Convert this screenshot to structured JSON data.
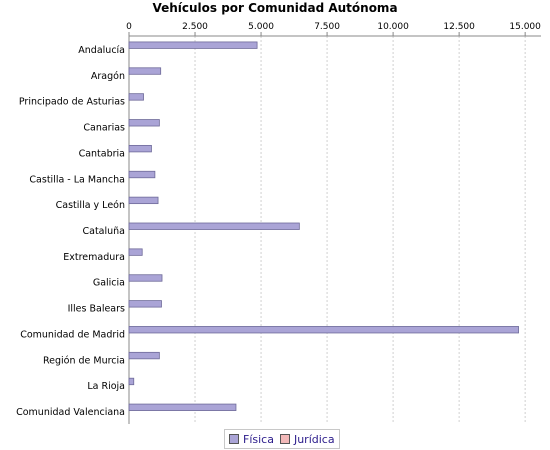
{
  "chart_data": {
    "type": "bar",
    "orientation": "horizontal",
    "title": "Vehículos por Comunidad Autónoma",
    "xlabel": "",
    "ylabel": "",
    "xlim": [
      0,
      15600
    ],
    "x_ticks": [
      0,
      2500,
      5000,
      7500,
      10000,
      12500,
      15000
    ],
    "x_tick_labels": [
      "0",
      "2.500",
      "5.000",
      "7.500",
      "10.000",
      "12.500",
      "15.000"
    ],
    "x_axis_position": "top",
    "grid": true,
    "legend_position": "bottom",
    "categories": [
      "Andalucía",
      "Aragón",
      "Principado de Asturias",
      "Canarias",
      "Cantabria",
      "Castilla - La Mancha",
      "Castilla y León",
      "Cataluña",
      "Extremadura",
      "Galicia",
      "Illes Balears",
      "Comunidad de Madrid",
      "Región de Murcia",
      "La Rioja",
      "Comunidad Valenciana"
    ],
    "series": [
      {
        "name": "Física",
        "color": "#aaa4d6",
        "values": [
          4850,
          1200,
          550,
          1150,
          850,
          980,
          1100,
          6450,
          500,
          1250,
          1230,
          14750,
          1150,
          180,
          4050
        ]
      },
      {
        "name": "Jurídica",
        "color": "#f2b8b8",
        "values": [
          0,
          0,
          0,
          0,
          0,
          0,
          0,
          0,
          0,
          0,
          0,
          0,
          0,
          0,
          0
        ]
      }
    ]
  }
}
